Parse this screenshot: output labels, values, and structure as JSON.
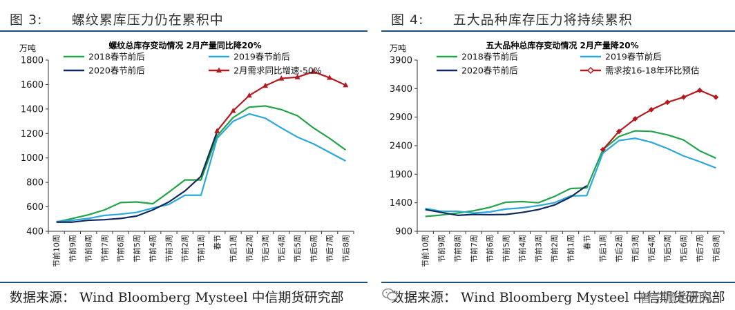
{
  "colors": {
    "green": "#22a34a",
    "light_blue": "#2aa7dc",
    "navy": "#10285a",
    "red": "#b3191f",
    "rule": "#1f4e79"
  },
  "left": {
    "fig_title": "图 3:      螺纹累库压力仍在累积中",
    "source": "数据来源： Wind Bloomberg Mysteel 中信期货研究部"
  },
  "right": {
    "fig_title": "图 4:      五大品种库存压力将持续累积",
    "source": "数据来源： Wind Bloomberg Mysteel 中信期货研究部",
    "watermark": "曾宁黑色团队",
    "watermark_icon": "wechat-icon"
  },
  "chart_data": [
    {
      "type": "line",
      "title": "螺纹总库存变动情况 2月产量同比降20%",
      "ylabel": "万吨",
      "ylim": [
        400,
        1800
      ],
      "yticks": [
        400,
        600,
        800,
        1000,
        1200,
        1400,
        1600,
        1800
      ],
      "grid": false,
      "legend_position": "top",
      "categories": [
        "节前10周",
        "节前9周",
        "节前8周",
        "节前7周",
        "节前6周",
        "节前5周",
        "节前4周",
        "节前3周",
        "节前2周",
        "节前1周",
        "春节",
        "节后1周",
        "节后2周",
        "节后3周",
        "节后4周",
        "节后5周",
        "节后6周",
        "节后7周",
        "节后8周"
      ],
      "series": [
        {
          "name": "2018春节前后",
          "color": "#22a34a",
          "values": [
            475,
            505,
            535,
            575,
            635,
            640,
            625,
            720,
            820,
            820,
            1180,
            1330,
            1415,
            1425,
            1395,
            1345,
            1245,
            1160,
            1065
          ]
        },
        {
          "name": "2019春节前后",
          "color": "#2aa7dc",
          "values": [
            480,
            490,
            505,
            530,
            540,
            555,
            590,
            620,
            695,
            695,
            1160,
            1300,
            1360,
            1325,
            1245,
            1170,
            1115,
            1045,
            975
          ]
        },
        {
          "name": "2020春节前后",
          "color": "#10285a",
          "values": [
            475,
            475,
            490,
            495,
            505,
            525,
            575,
            640,
            730,
            850,
            1215,
            null,
            null,
            null,
            null,
            null,
            null,
            null,
            null
          ]
        },
        {
          "name": "2月需求同比增速-50%",
          "color": "#b3191f",
          "marker": "triangle",
          "values": [
            null,
            null,
            null,
            null,
            null,
            null,
            null,
            null,
            null,
            null,
            1220,
            1385,
            1510,
            1590,
            1650,
            1660,
            1705,
            1655,
            1595
          ]
        }
      ]
    },
    {
      "type": "line",
      "title": "五大品种总库存变动情况 2月产量降20%",
      "ylabel": "万吨",
      "ylim": [
        900,
        3900
      ],
      "yticks": [
        900,
        1400,
        1900,
        2400,
        2900,
        3400,
        3900
      ],
      "grid": false,
      "legend_position": "top",
      "categories": [
        "节前10周",
        "节前9周",
        "节前8周",
        "节前7周",
        "节前6周",
        "节前5周",
        "节前4周",
        "节前3周",
        "节前2周",
        "节前1周",
        "春节",
        "节后1周",
        "节后2周",
        "节后3周",
        "节后4周",
        "节后5周",
        "节后6周",
        "节后7周",
        "节后8周"
      ],
      "series": [
        {
          "name": "2018春节前后",
          "color": "#22a34a",
          "values": [
            1160,
            1185,
            1220,
            1260,
            1320,
            1410,
            1420,
            1400,
            1510,
            1650,
            1660,
            2330,
            2560,
            2660,
            2650,
            2590,
            2500,
            2310,
            2180
          ]
        },
        {
          "name": "2019春节前后",
          "color": "#2aa7dc",
          "values": [
            1300,
            1250,
            1250,
            1220,
            1240,
            1290,
            1310,
            1350,
            1400,
            1520,
            1525,
            2270,
            2490,
            2530,
            2460,
            2350,
            2220,
            2120,
            2010
          ]
        },
        {
          "name": "2020春节前后",
          "color": "#10285a",
          "values": [
            1280,
            1230,
            1180,
            1195,
            1190,
            1195,
            1230,
            1280,
            1360,
            1500,
            1700,
            null,
            null,
            null,
            null,
            null,
            null,
            null,
            null
          ]
        },
        {
          "name": "需求按16-18年环比预估",
          "color": "#b3191f",
          "marker": "diamond",
          "values": [
            null,
            null,
            null,
            null,
            null,
            null,
            null,
            null,
            null,
            null,
            null,
            2330,
            2650,
            2870,
            3030,
            3160,
            3250,
            3370,
            3250
          ]
        }
      ]
    }
  ]
}
